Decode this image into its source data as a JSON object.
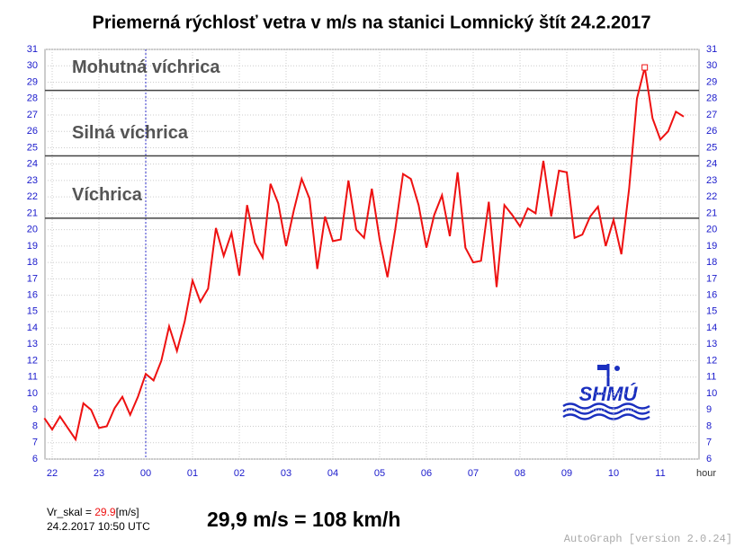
{
  "chart_data": {
    "type": "line",
    "title": "Priemerná rýchlosť vetra v m/s na stanici Lomnický štít 24.2.2017",
    "xlabel": "hour",
    "x": [
      21.833,
      22,
      22.167,
      22.333,
      22.5,
      22.667,
      22.833,
      23,
      23.167,
      23.333,
      23.5,
      23.667,
      23.833,
      24,
      24.167,
      24.333,
      24.5,
      24.667,
      24.833,
      25,
      25.167,
      25.333,
      25.5,
      25.667,
      25.833,
      26,
      26.167,
      26.333,
      26.5,
      26.667,
      26.833,
      27,
      27.167,
      27.333,
      27.5,
      27.667,
      27.833,
      28,
      28.167,
      28.333,
      28.5,
      28.667,
      28.833,
      29,
      29.167,
      29.333,
      29.5,
      29.667,
      29.833,
      30,
      30.167,
      30.333,
      30.5,
      30.667,
      30.833,
      31,
      31.167,
      31.333,
      31.5,
      31.667,
      31.833,
      32,
      32.167,
      32.333,
      32.5,
      32.667,
      32.833,
      33,
      33.167,
      33.333,
      33.5,
      33.667,
      33.833,
      34,
      34.167,
      34.333,
      34.5,
      34.667,
      34.833,
      35,
      35.167,
      35.333,
      35.5
    ],
    "series": [
      {
        "name": "Vr_skal",
        "color": "#ee1111",
        "values": [
          8.5,
          7.8,
          8.6,
          7.9,
          7.2,
          9.4,
          9.0,
          7.9,
          8.0,
          9.1,
          9.8,
          8.7,
          9.8,
          11.2,
          10.8,
          12.0,
          14.1,
          12.6,
          14.4,
          16.9,
          15.6,
          16.4,
          20.1,
          18.4,
          19.8,
          17.2,
          21.5,
          19.2,
          18.3,
          22.8,
          21.6,
          19.0,
          21.2,
          23.1,
          21.9,
          17.6,
          20.8,
          19.3,
          19.4,
          23.0,
          20.0,
          19.5,
          22.5,
          19.4,
          17.1,
          20.0,
          23.4,
          23.1,
          21.5,
          18.9,
          20.9,
          22.1,
          19.6,
          23.5,
          18.9,
          18.0,
          18.1,
          21.7,
          16.5,
          21.5,
          20.9,
          20.2,
          21.3,
          21.0,
          24.2,
          20.8,
          23.6,
          23.5,
          19.5,
          19.7,
          20.8,
          21.4,
          19.0,
          20.6,
          18.5,
          22.5,
          28.0,
          29.9,
          26.8,
          25.5,
          26.0,
          27.2,
          26.9
        ]
      }
    ],
    "peak_index": 77,
    "xlim": [
      21.846,
      35.827
    ],
    "xticks": [
      {
        "value": 22,
        "label": "22"
      },
      {
        "value": 23,
        "label": "23"
      },
      {
        "value": 24,
        "label": "00"
      },
      {
        "value": 25,
        "label": "01"
      },
      {
        "value": 26,
        "label": "02"
      },
      {
        "value": 27,
        "label": "03"
      },
      {
        "value": 28,
        "label": "04"
      },
      {
        "value": 29,
        "label": "05"
      },
      {
        "value": 30,
        "label": "06"
      },
      {
        "value": 31,
        "label": "07"
      },
      {
        "value": 32,
        "label": "08"
      },
      {
        "value": 33,
        "label": "09"
      },
      {
        "value": 34,
        "label": "10"
      },
      {
        "value": 35,
        "label": "11"
      }
    ],
    "xmarker": 24,
    "ylim": [
      6,
      31
    ],
    "yticks": [
      6,
      7,
      8,
      9,
      10,
      11,
      12,
      13,
      14,
      15,
      16,
      17,
      18,
      19,
      20,
      21,
      22,
      23,
      24,
      25,
      26,
      27,
      28,
      29,
      30,
      31
    ],
    "grid": true,
    "thresholds": [
      {
        "value": 28.5,
        "label": "Mohutná víchrica"
      },
      {
        "value": 24.5,
        "label": "Silná víchrica"
      },
      {
        "value": 20.7,
        "label": "Víchrica"
      }
    ],
    "readout": {
      "name": "Vr_skal = ",
      "value": 29.9,
      "unit": "[m/s]",
      "time": "24.2.2017 10:50 UTC"
    },
    "headline": "29,9 m/s = 108 km/h",
    "logo": "SHMÚ",
    "footer": "AutoGraph [version 2.0.24]"
  }
}
